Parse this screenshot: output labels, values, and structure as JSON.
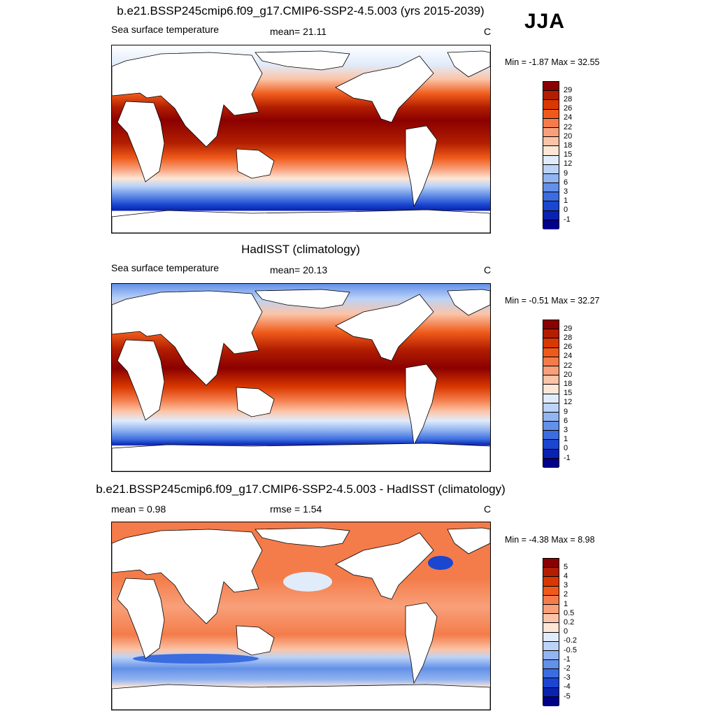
{
  "season": "JJA",
  "panels": [
    {
      "id": "model",
      "title": "b.e21.BSSP245cmip6.f09_g17.CMIP6-SSP2-4.5.003 (yrs 2015-2039)",
      "left_label": "Sea surface temperature",
      "mid_label": "mean=  21.11",
      "units": "C",
      "minmax": "Min =  -1.87 Max =  32.55",
      "colorbar": {
        "labels": [
          "29",
          "28",
          "26",
          "24",
          "22",
          "20",
          "18",
          "15",
          "12",
          "9",
          "6",
          "3",
          "1",
          "0",
          "-1"
        ],
        "colors": [
          "#8b0000",
          "#b21e00",
          "#d93800",
          "#ef5a1a",
          "#f47c4a",
          "#f8a07a",
          "#fbc4a8",
          "#fde6d6",
          "#e1ecfb",
          "#bcd3f7",
          "#92b4f0",
          "#6390e8",
          "#3b6de0",
          "#1a46d0",
          "#0a22b0",
          "#00008b"
        ]
      }
    },
    {
      "id": "obs",
      "title": "HadISST (climatology)",
      "left_label": "Sea surface temperature",
      "mid_label": "mean=  20.13",
      "units": "C",
      "minmax": "Min =  -0.51 Max =  32.27",
      "colorbar": {
        "labels": [
          "29",
          "28",
          "26",
          "24",
          "22",
          "20",
          "18",
          "15",
          "12",
          "9",
          "6",
          "3",
          "1",
          "0",
          "-1"
        ],
        "colors": [
          "#8b0000",
          "#b21e00",
          "#d93800",
          "#ef5a1a",
          "#f47c4a",
          "#f8a07a",
          "#fbc4a8",
          "#fde6d6",
          "#e1ecfb",
          "#bcd3f7",
          "#92b4f0",
          "#6390e8",
          "#3b6de0",
          "#1a46d0",
          "#0a22b0",
          "#00008b"
        ]
      }
    },
    {
      "id": "diff",
      "title": "b.e21.BSSP245cmip6.f09_g17.CMIP6-SSP2-4.5.003 - HadISST (climatology)",
      "left_label": "mean =   0.98",
      "mid_label": "rmse =   1.54",
      "units": "C",
      "minmax": "Min =  -4.38 Max =   8.98",
      "colorbar": {
        "labels": [
          "5",
          "4",
          "3",
          "2",
          "1",
          "0.5",
          "0.2",
          "0",
          "-0.2",
          "-0.5",
          "-1",
          "-2",
          "-3",
          "-4",
          "-5"
        ],
        "colors": [
          "#8b0000",
          "#b21e00",
          "#d93800",
          "#ef5a1a",
          "#f47c4a",
          "#f8a07a",
          "#fbc4a8",
          "#fde6d6",
          "#e1ecfb",
          "#bcd3f7",
          "#92b4f0",
          "#6390e8",
          "#3b6de0",
          "#1a46d0",
          "#0a22b0",
          "#00008b"
        ]
      }
    }
  ]
}
